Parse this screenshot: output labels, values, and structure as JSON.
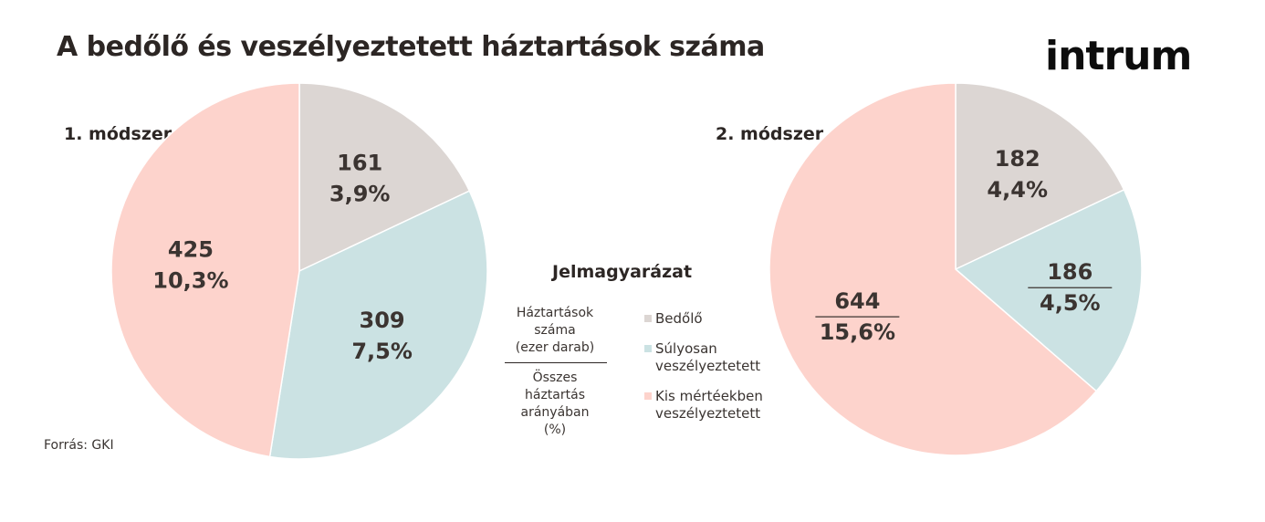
{
  "title": "A bedőlő és veszélyeztetett háztartások száma",
  "logo": "intrum",
  "legend": {
    "title": "Jelmagyarázat",
    "key_top": "Háztartások\nszáma\n(ezer darab)",
    "key_bottom": "Összes\nháztartás\narányában\n(%)",
    "items": [
      {
        "label": "Bedőlő",
        "color": "#dcd6d3"
      },
      {
        "label": "Súlyosan\nveszélyeztetett",
        "color": "#cbe2e3"
      },
      {
        "label": "Kis mértéekben\nveszélyeztetett",
        "color": "#fdd3cc"
      }
    ]
  },
  "source": "Forrás: GKI",
  "chart_data": [
    {
      "type": "pie",
      "title": "1. módszer",
      "slices": [
        {
          "category": "Bedőlő",
          "value": 161,
          "percent": "3,9%",
          "color": "#dcd6d3"
        },
        {
          "category": "Súlyosan veszélyeztetett",
          "value": 309,
          "percent": "7,5%",
          "color": "#cbe2e3"
        },
        {
          "category": "Kis mértéekben veszélyeztetett",
          "value": 425,
          "percent": "10,3%",
          "color": "#fdd3cc"
        }
      ]
    },
    {
      "type": "pie",
      "title": "2. módszer",
      "slices": [
        {
          "category": "Bedőlő",
          "value": 182,
          "percent": "4,4%",
          "color": "#dcd6d3"
        },
        {
          "category": "Súlyosan veszélyeztetett",
          "value": 186,
          "percent": "4,5%",
          "color": "#cbe2e3"
        },
        {
          "category": "Kis mértéekben veszélyeztetett",
          "value": 644,
          "percent": "15,6%",
          "color": "#fdd3cc"
        }
      ]
    }
  ]
}
